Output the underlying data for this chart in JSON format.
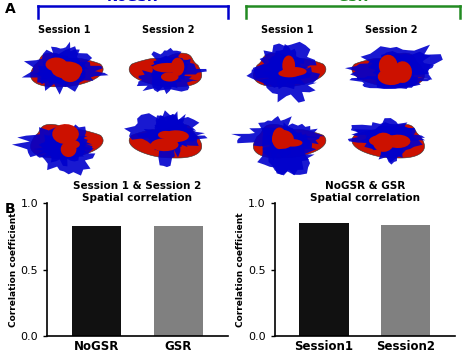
{
  "panel_a_label": "A",
  "panel_b_label": "B",
  "nogsr_label": "NoGSR",
  "gsr_label": "GSR",
  "session1_label": "Session 1",
  "session2_label": "Session 2",
  "nogsr_color": "#0000CC",
  "gsr_color": "#228B22",
  "bar1_categories": [
    "NoGSR",
    "GSR"
  ],
  "bar1_values": [
    0.83,
    0.83
  ],
  "bar1_colors": [
    "#111111",
    "#808080"
  ],
  "bar1_title_line1": "Session 1 & Session 2",
  "bar1_title_line2": "Spatial correlation",
  "bar2_categories": [
    "Session1",
    "Session2"
  ],
  "bar2_values": [
    0.855,
    0.835
  ],
  "bar2_colors": [
    "#111111",
    "#808080"
  ],
  "bar2_title_line1": "NoGSR & GSR",
  "bar2_title_line2": "Spatial correlation",
  "ylabel": "Correlation coefficient",
  "ylim": [
    0,
    1.0
  ],
  "yticks": [
    0,
    0.5,
    1
  ],
  "background_color": "#ffffff"
}
